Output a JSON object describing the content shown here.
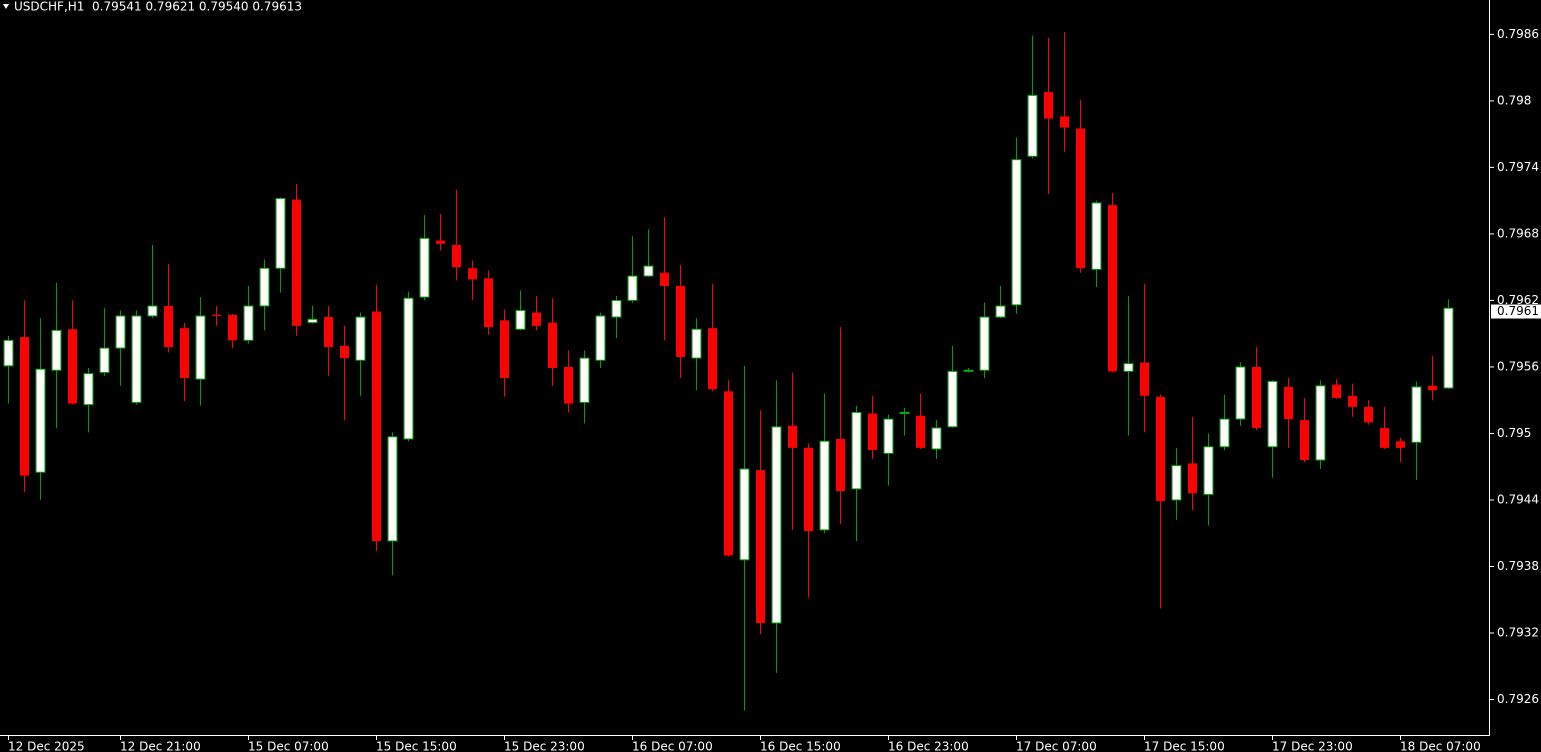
{
  "chart_data": {
    "type": "candlestick",
    "title": "USDCHF,H1  0.79541 0.79621 0.79540 0.79613",
    "categories": [
      "12 Dec 2025",
      null,
      null,
      null,
      null,
      null,
      null,
      "12 Dec 21:00",
      null,
      null,
      null,
      null,
      null,
      null,
      null,
      "15 Dec 07:00",
      null,
      null,
      null,
      null,
      null,
      null,
      null,
      "15 Dec 15:00",
      null,
      null,
      null,
      null,
      null,
      null,
      null,
      "15 Dec 23:00",
      null,
      null,
      null,
      null,
      null,
      null,
      null,
      "16 Dec 07:00",
      null,
      null,
      null,
      null,
      null,
      null,
      null,
      "16 Dec 15:00",
      null,
      null,
      null,
      null,
      null,
      null,
      null,
      "16 Dec 23:00",
      null,
      null,
      null,
      null,
      null,
      null,
      null,
      "17 Dec 07:00",
      null,
      null,
      null,
      null,
      null,
      null,
      null,
      "17 Dec 15:00",
      null,
      null,
      null,
      null,
      null,
      null,
      null,
      "17 Dec 23:00",
      null,
      null,
      null,
      null,
      null,
      null,
      null,
      "18 Dec 07:00",
      null,
      null,
      null
    ],
    "open": [
      0.79561,
      0.79587,
      0.79465,
      0.79557,
      0.79594,
      0.79526,
      0.79555,
      0.79577,
      0.79528,
      0.79606,
      0.79615,
      0.79595,
      0.79549,
      0.79607,
      0.79607,
      0.79584,
      0.79615,
      0.79649,
      0.79711,
      0.796,
      0.79605,
      0.79579,
      0.79566,
      0.7961,
      0.79403,
      0.79495,
      0.79623,
      0.79674,
      0.7967,
      0.79649,
      0.7964,
      0.79602,
      0.79594,
      0.79609,
      0.796,
      0.7956,
      0.79528,
      0.79566,
      0.79605,
      0.7962,
      0.79642,
      0.79645,
      0.79633,
      0.79568,
      0.79595,
      0.79538,
      0.79386,
      0.79467,
      0.79329,
      0.79507,
      0.79487,
      0.79413,
      0.79495,
      0.7945,
      0.79518,
      0.79482,
      0.79518,
      0.79516,
      0.79486,
      0.79506,
      0.79556,
      0.79557,
      0.79605,
      0.79616,
      0.7975,
      0.79808,
      0.79786,
      0.79775,
      0.79648,
      0.79706,
      0.79556,
      0.79564,
      0.79533,
      0.7944,
      0.79473,
      0.79445,
      0.79488,
      0.79513,
      0.7956,
      0.79488,
      0.79542,
      0.79512,
      0.79476,
      0.79544,
      0.79534,
      0.79524,
      0.79505,
      0.79493,
      0.79492,
      0.79543,
      0.79541
    ],
    "high": [
      0.79588,
      0.7962,
      0.79604,
      0.79636,
      0.7962,
      0.79559,
      0.79613,
      0.79611,
      0.79611,
      0.7967,
      0.79653,
      0.796,
      0.79623,
      0.79615,
      0.79608,
      0.79633,
      0.79657,
      0.79713,
      0.79725,
      0.79615,
      0.79615,
      0.79597,
      0.79609,
      0.79634,
      0.79501,
      0.79628,
      0.79697,
      0.79698,
      0.7972,
      0.79656,
      0.79647,
      0.79612,
      0.79629,
      0.79624,
      0.79622,
      0.79575,
      0.79575,
      0.79609,
      0.79624,
      0.79678,
      0.79684,
      0.79695,
      0.79652,
      0.79604,
      0.79635,
      0.79548,
      0.79561,
      0.79521,
      0.79548,
      0.79555,
      0.79491,
      0.79536,
      0.79596,
      0.79525,
      0.79534,
      0.79517,
      0.79523,
      0.79536,
      0.79512,
      0.79579,
      0.79559,
      0.79618,
      0.79633,
      0.79767,
      0.79859,
      0.79857,
      0.79862,
      0.79801,
      0.7971,
      0.79717,
      0.79624,
      0.79635,
      0.79535,
      0.79487,
      0.79515,
      0.795,
      0.79535,
      0.79564,
      0.79578,
      0.79548,
      0.7955,
      0.79532,
      0.79548,
      0.79549,
      0.79545,
      0.7953,
      0.79524,
      0.79496,
      0.79547,
      0.7957,
      0.79621
    ],
    "low": [
      0.79527,
      0.79447,
      0.7944,
      0.79505,
      0.79526,
      0.79501,
      0.79552,
      0.79543,
      0.79526,
      0.79604,
      0.79573,
      0.79529,
      0.79525,
      0.79597,
      0.79577,
      0.79581,
      0.79593,
      0.79627,
      0.79588,
      0.79599,
      0.79552,
      0.79512,
      0.79534,
      0.79394,
      0.79372,
      0.79493,
      0.7962,
      0.79665,
      0.79638,
      0.7962,
      0.79589,
      0.79533,
      0.79593,
      0.79593,
      0.79543,
      0.79519,
      0.79509,
      0.79559,
      0.79586,
      0.79618,
      0.79641,
      0.79584,
      0.7955,
      0.79539,
      0.79538,
      0.79389,
      0.7925,
      0.79319,
      0.79284,
      0.79413,
      0.79352,
      0.7941,
      0.79418,
      0.79403,
      0.79477,
      0.79453,
      0.79498,
      0.79486,
      0.79477,
      0.79505,
      0.79555,
      0.7955,
      0.79604,
      0.79608,
      0.79748,
      0.79716,
      0.79754,
      0.79645,
      0.79632,
      0.79555,
      0.79498,
      0.79501,
      0.79342,
      0.79422,
      0.79431,
      0.79417,
      0.79485,
      0.79507,
      0.79503,
      0.7946,
      0.79487,
      0.79474,
      0.79468,
      0.79531,
      0.79515,
      0.79508,
      0.79486,
      0.79474,
      0.79458,
      0.7953,
      0.7954
    ],
    "close": [
      0.79584,
      0.79462,
      0.79558,
      0.79593,
      0.79527,
      0.79554,
      0.79577,
      0.79606,
      0.79606,
      0.79615,
      0.79578,
      0.7955,
      0.79606,
      0.79606,
      0.79584,
      0.79615,
      0.79649,
      0.79712,
      0.79597,
      0.79603,
      0.79578,
      0.79568,
      0.79605,
      0.79403,
      0.79497,
      0.79622,
      0.79676,
      0.79671,
      0.7965,
      0.79639,
      0.79596,
      0.7955,
      0.79611,
      0.79597,
      0.79559,
      0.79527,
      0.79568,
      0.79606,
      0.7962,
      0.79642,
      0.79651,
      0.79633,
      0.79569,
      0.79594,
      0.7954,
      0.7939,
      0.79468,
      0.79329,
      0.79506,
      0.79487,
      0.79412,
      0.79493,
      0.79448,
      0.79519,
      0.79485,
      0.79513,
      0.79519,
      0.79487,
      0.79505,
      0.79556,
      0.79557,
      0.79605,
      0.79615,
      0.79747,
      0.79805,
      0.79784,
      0.79776,
      0.79649,
      0.79708,
      0.79556,
      0.79563,
      0.79534,
      0.79439,
      0.79471,
      0.79446,
      0.79488,
      0.79513,
      0.7956,
      0.79505,
      0.79547,
      0.79513,
      0.79476,
      0.79543,
      0.79532,
      0.79524,
      0.7951,
      0.79487,
      0.79487,
      0.79542,
      0.79539,
      0.79613
    ],
    "ylim": [
      0.79228,
      0.79891
    ],
    "yticks": [
      0.7926,
      0.7932,
      0.7938,
      0.7944,
      0.795,
      0.7956,
      0.7962,
      0.7968,
      0.7974,
      0.798,
      0.7986
    ],
    "current_price": 0.7961,
    "up_color": "#ffffff",
    "down_color": "#ff0000",
    "up_wick_color": "#00a000",
    "down_wick_color": "#ff0000",
    "grid": false
  }
}
